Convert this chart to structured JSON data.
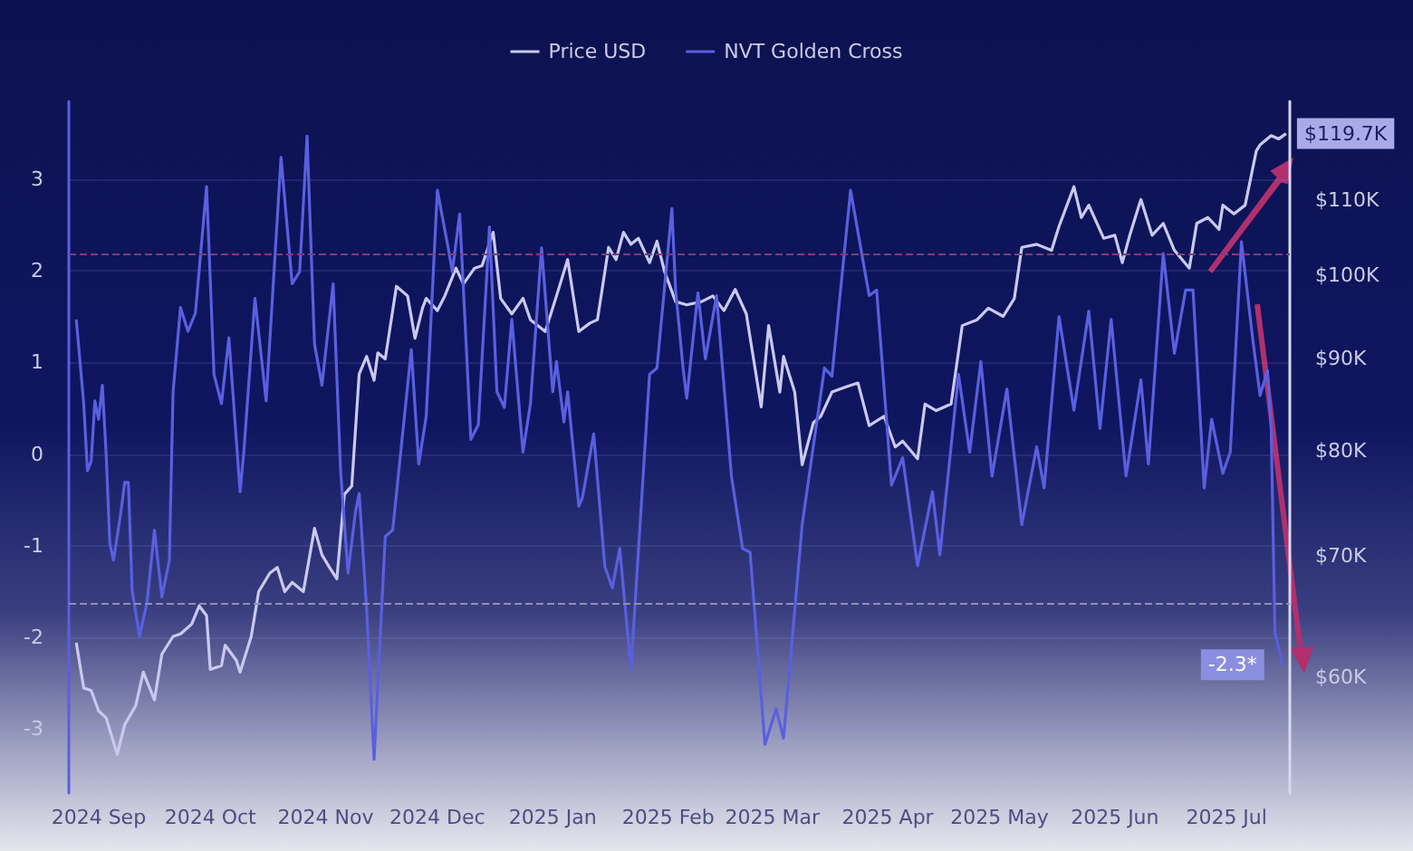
{
  "chart_data": {
    "type": "line",
    "legend": "top",
    "grid": "y",
    "marker": "none",
    "log": "y2",
    "xlim": [
      "2024-08-24",
      "2025-07-18"
    ],
    "xticks": [
      {
        "value": "2024-09-01",
        "label": "2024 Sep"
      },
      {
        "value": "2024-10-01",
        "label": "2024 Oct"
      },
      {
        "value": "2024-11-01",
        "label": "2024 Nov"
      },
      {
        "value": "2024-12-01",
        "label": "2024 Dec"
      },
      {
        "value": "2025-01-01",
        "label": "2025 Jan"
      },
      {
        "value": "2025-02-01",
        "label": "2025 Feb"
      },
      {
        "value": "2025-03-01",
        "label": "2025 Mar"
      },
      {
        "value": "2025-04-01",
        "label": "2025 Apr"
      },
      {
        "value": "2025-05-01",
        "label": "2025 May"
      },
      {
        "value": "2025-06-01",
        "label": "2025 Jun"
      },
      {
        "value": "2025-07-01",
        "label": "2025 Jul"
      }
    ],
    "ylim": [
      -3.7,
      3.85
    ],
    "yticks": [
      -3,
      -2,
      -1,
      0,
      1,
      2,
      3
    ],
    "y2lim": [
      51800,
      124700
    ],
    "y2ticks": [
      {
        "value": 60000,
        "label": "$60K"
      },
      {
        "value": 70000,
        "label": "$70K"
      },
      {
        "value": 80000,
        "label": "$80K"
      },
      {
        "value": 90000,
        "label": "$90K"
      },
      {
        "value": 100000,
        "label": "$100K"
      },
      {
        "value": 110000,
        "label": "$110K"
      }
    ],
    "ref_lines": [
      {
        "axis": "y",
        "value": 2.19,
        "color": "#7a3f78",
        "line_style": "dashed"
      },
      {
        "axis": "y",
        "value": -1.62,
        "color": "#8e90b0",
        "line_style": "dashed"
      }
    ],
    "series": [
      {
        "name": "Price USD",
        "color": "#c9c9f0",
        "axis": "y2",
        "x": [
          "2024-08-26",
          "2024-08-28",
          "2024-08-30",
          "2024-09-01",
          "2024-09-03",
          "2024-09-06",
          "2024-09-08",
          "2024-09-11",
          "2024-09-13",
          "2024-09-16",
          "2024-09-18",
          "2024-09-21",
          "2024-09-23",
          "2024-09-26",
          "2024-09-28",
          "2024-09-30",
          "2024-10-01",
          "2024-10-04",
          "2024-10-05",
          "2024-10-08",
          "2024-10-09",
          "2024-10-12",
          "2024-10-14",
          "2024-10-17",
          "2024-10-19",
          "2024-10-21",
          "2024-10-23",
          "2024-10-26",
          "2024-10-29",
          "2024-10-31",
          "2024-11-02",
          "2024-11-04",
          "2024-11-06",
          "2024-11-08",
          "2024-11-10",
          "2024-11-12",
          "2024-11-14",
          "2024-11-15",
          "2024-11-17",
          "2024-11-20",
          "2024-11-23",
          "2024-11-25",
          "2024-11-27",
          "2024-11-28",
          "2024-12-01",
          "2024-12-03",
          "2024-12-06",
          "2024-12-08",
          "2024-12-11",
          "2024-12-13",
          "2024-12-16",
          "2024-12-18",
          "2024-12-21",
          "2024-12-24",
          "2024-12-26",
          "2024-12-30",
          "2025-01-02",
          "2025-01-05",
          "2025-01-08",
          "2025-01-11",
          "2025-01-13",
          "2025-01-16",
          "2025-01-18",
          "2025-01-20",
          "2025-01-22",
          "2025-01-24",
          "2025-01-27",
          "2025-01-29",
          "2025-01-31",
          "2025-02-03",
          "2025-02-06",
          "2025-02-10",
          "2025-02-13",
          "2025-02-16",
          "2025-02-19",
          "2025-02-22",
          "2025-02-26",
          "2025-02-28",
          "2025-03-03",
          "2025-03-04",
          "2025-03-07",
          "2025-03-09",
          "2025-03-12",
          "2025-03-14",
          "2025-03-17",
          "2025-03-21",
          "2025-03-24",
          "2025-03-27",
          "2025-03-31",
          "2025-04-03",
          "2025-04-05",
          "2025-04-09",
          "2025-04-11",
          "2025-04-14",
          "2025-04-18",
          "2025-04-21",
          "2025-04-25",
          "2025-04-28",
          "2025-05-02",
          "2025-05-05",
          "2025-05-07",
          "2025-05-11",
          "2025-05-15",
          "2025-05-17",
          "2025-05-21",
          "2025-05-23",
          "2025-05-25",
          "2025-05-29",
          "2025-06-01",
          "2025-06-03",
          "2025-06-05",
          "2025-06-08",
          "2025-06-11",
          "2025-06-14",
          "2025-06-17",
          "2025-06-21",
          "2025-06-23",
          "2025-06-26",
          "2025-06-29",
          "2025-06-30",
          "2025-07-03",
          "2025-07-06",
          "2025-07-09",
          "2025-07-10",
          "2025-07-13",
          "2025-07-15",
          "2025-07-17"
        ],
        "values": [
          62700,
          59200,
          59000,
          57500,
          57000,
          54400,
          56500,
          57900,
          60400,
          58300,
          61800,
          63200,
          63400,
          64200,
          65700,
          64900,
          60600,
          60900,
          62500,
          61300,
          60400,
          63200,
          66900,
          68500,
          69000,
          66900,
          67700,
          66900,
          72500,
          70100,
          69000,
          68000,
          75700,
          76500,
          88200,
          90200,
          87500,
          90600,
          89900,
          98600,
          97400,
          92300,
          95900,
          97100,
          95600,
          97400,
          100900,
          98900,
          100900,
          101200,
          105600,
          97100,
          95200,
          97100,
          94500,
          93100,
          97400,
          102000,
          93100,
          94100,
          94500,
          103600,
          102000,
          105600,
          104000,
          104800,
          101600,
          104400,
          100500,
          96700,
          96300,
          96700,
          97400,
          95600,
          98200,
          95200,
          84600,
          93800,
          86200,
          90200,
          86200,
          78600,
          82900,
          83600,
          86200,
          86800,
          87200,
          82600,
          83600,
          80400,
          81000,
          79200,
          84900,
          84200,
          84900,
          93800,
          94500,
          95900,
          94900,
          97100,
          103600,
          104000,
          103200,
          106400,
          111900,
          107600,
          109300,
          104800,
          105200,
          101600,
          105200,
          110100,
          105200,
          106800,
          103200,
          100900,
          106800,
          107600,
          106000,
          109300,
          108100,
          109300,
          117100,
          118000,
          119400,
          118900,
          119700
        ],
        "value_labels": [
          null,
          null,
          null,
          null,
          null,
          null,
          null,
          null,
          null,
          null,
          null,
          null,
          null,
          null,
          null,
          null,
          null,
          null,
          null,
          null,
          null,
          null,
          null,
          null,
          null,
          null,
          null,
          null,
          null,
          null,
          null,
          null,
          null,
          null,
          null,
          null,
          null,
          null,
          null,
          null,
          null,
          null,
          null,
          null,
          null,
          null,
          null,
          null,
          null,
          null,
          null,
          null,
          null,
          null,
          null,
          null,
          null,
          null,
          null,
          null,
          null,
          null,
          null,
          null,
          null,
          null,
          null,
          null,
          null,
          null,
          null,
          null,
          null,
          null,
          null,
          null,
          null,
          null,
          null,
          null,
          null,
          null,
          null,
          null,
          null,
          null,
          null,
          null,
          null,
          null,
          null,
          null,
          null,
          null,
          null,
          null,
          null,
          null,
          null,
          null,
          null,
          null,
          null,
          null,
          null,
          null,
          null,
          null,
          null,
          null,
          null,
          null,
          null,
          null,
          null,
          null,
          null,
          null,
          null,
          null,
          null,
          null,
          null,
          null,
          null,
          null,
          "$119.7K"
        ]
      },
      {
        "name": "NVT Golden Cross",
        "color": "#5a5fe0",
        "axis": "y",
        "x": [
          "2024-08-26",
          "2024-08-28",
          "2024-08-29",
          "2024-08-30",
          "2024-08-31",
          "2024-09-01",
          "2024-09-02",
          "2024-09-03",
          "2024-09-04",
          "2024-09-05",
          "2024-09-07",
          "2024-09-08",
          "2024-09-09",
          "2024-09-10",
          "2024-09-12",
          "2024-09-14",
          "2024-09-16",
          "2024-09-18",
          "2024-09-20",
          "2024-09-21",
          "2024-09-23",
          "2024-09-25",
          "2024-09-27",
          "2024-09-30",
          "2024-10-02",
          "2024-10-04",
          "2024-10-06",
          "2024-10-09",
          "2024-10-10",
          "2024-10-13",
          "2024-10-16",
          "2024-10-20",
          "2024-10-23",
          "2024-10-25",
          "2024-10-27",
          "2024-10-29",
          "2024-10-31",
          "2024-11-03",
          "2024-11-05",
          "2024-11-07",
          "2024-11-09",
          "2024-11-10",
          "2024-11-12",
          "2024-11-14",
          "2024-11-17",
          "2024-11-19",
          "2024-11-24",
          "2024-11-26",
          "2024-11-28",
          "2024-12-01",
          "2024-12-04",
          "2024-12-05",
          "2024-12-07",
          "2024-12-10",
          "2024-12-12",
          "2024-12-15",
          "2024-12-17",
          "2024-12-19",
          "2024-12-21",
          "2024-12-24",
          "2024-12-26",
          "2024-12-29",
          "2025-01-01",
          "2025-01-02",
          "2025-01-04",
          "2025-01-05",
          "2025-01-08",
          "2025-01-09",
          "2025-01-12",
          "2025-01-15",
          "2025-01-17",
          "2025-01-19",
          "2025-01-22",
          "2025-01-27",
          "2025-01-29",
          "2025-02-02",
          "2025-02-03",
          "2025-02-05",
          "2025-02-06",
          "2025-02-09",
          "2025-02-11",
          "2025-02-14",
          "2025-02-18",
          "2025-02-21",
          "2025-02-23",
          "2025-02-27",
          "2025-03-02",
          "2025-03-04",
          "2025-03-09",
          "2025-03-15",
          "2025-03-17",
          "2025-03-22",
          "2025-03-27",
          "2025-03-29",
          "2025-04-02",
          "2025-04-05",
          "2025-04-09",
          "2025-04-13",
          "2025-04-15",
          "2025-04-20",
          "2025-04-23",
          "2025-04-26",
          "2025-04-29",
          "2025-05-03",
          "2025-05-07",
          "2025-05-11",
          "2025-05-13",
          "2025-05-17",
          "2025-05-21",
          "2025-05-25",
          "2025-05-28",
          "2025-05-31",
          "2025-06-04",
          "2025-06-08",
          "2025-06-10",
          "2025-06-14",
          "2025-06-17",
          "2025-06-20",
          "2025-06-22",
          "2025-06-25",
          "2025-06-27",
          "2025-06-30",
          "2025-07-02",
          "2025-07-05",
          "2025-07-08",
          "2025-07-10",
          "2025-07-12",
          "2025-07-13",
          "2025-07-14",
          "2025-07-16"
        ],
        "values": [
          1.47,
          0.55,
          -0.18,
          -0.08,
          0.58,
          0.38,
          0.75,
          0.02,
          -0.97,
          -1.16,
          -0.63,
          -0.31,
          -0.31,
          -1.49,
          -1.99,
          -1.62,
          -0.83,
          -1.56,
          -1.16,
          0.68,
          1.6,
          1.34,
          1.54,
          2.92,
          0.87,
          0.55,
          1.27,
          -0.41,
          0.02,
          1.7,
          0.58,
          3.24,
          1.86,
          1.99,
          3.47,
          1.2,
          0.75,
          1.86,
          -0.18,
          -1.3,
          -0.63,
          -0.43,
          -1.69,
          -3.33,
          -0.9,
          -0.83,
          1.14,
          -0.11,
          0.41,
          2.88,
          2.23,
          1.99,
          2.62,
          0.16,
          0.32,
          2.48,
          0.68,
          0.51,
          1.47,
          0.02,
          0.55,
          2.25,
          0.68,
          1.01,
          0.35,
          0.68,
          -0.57,
          -0.47,
          0.22,
          -1.23,
          -1.46,
          -1.03,
          -2.35,
          0.87,
          0.94,
          2.68,
          1.79,
          0.94,
          0.61,
          1.76,
          1.04,
          1.73,
          -0.24,
          -1.03,
          -1.07,
          -3.17,
          -2.78,
          -3.1,
          -0.77,
          0.94,
          0.85,
          2.88,
          1.73,
          1.79,
          -0.34,
          -0.04,
          -1.22,
          -0.41,
          -1.1,
          0.87,
          0.02,
          1.01,
          -0.24,
          0.71,
          -0.77,
          0.08,
          -0.37,
          1.5,
          0.48,
          1.56,
          0.28,
          1.47,
          -0.24,
          0.81,
          -0.11,
          2.19,
          1.1,
          1.79,
          1.79,
          -0.37,
          0.38,
          -0.21,
          0.02,
          2.32,
          1.27,
          0.64,
          0.91,
          0.28,
          -1.95,
          -2.3
        ],
        "value_labels": [
          null,
          null,
          null,
          null,
          null,
          null,
          null,
          null,
          null,
          null,
          null,
          null,
          null,
          null,
          null,
          null,
          null,
          null,
          null,
          null,
          null,
          null,
          null,
          null,
          null,
          null,
          null,
          null,
          null,
          null,
          null,
          null,
          null,
          null,
          null,
          null,
          null,
          null,
          null,
          null,
          null,
          null,
          null,
          null,
          null,
          null,
          null,
          null,
          null,
          null,
          null,
          null,
          null,
          null,
          null,
          null,
          null,
          null,
          null,
          null,
          null,
          null,
          null,
          null,
          null,
          null,
          null,
          null,
          null,
          null,
          null,
          null,
          null,
          null,
          null,
          null,
          null,
          null,
          null,
          null,
          null,
          null,
          null,
          null,
          null,
          null,
          null,
          null,
          null,
          null,
          null,
          null,
          null,
          null,
          null,
          null,
          null,
          null,
          null,
          null,
          null,
          null,
          null,
          null,
          null,
          null,
          null,
          null,
          null,
          null,
          null,
          null,
          null,
          null,
          null,
          null,
          null,
          null,
          null,
          null,
          null,
          null,
          null,
          null,
          null,
          null,
          null,
          null,
          null,
          "-2.3*"
        ]
      }
    ]
  }
}
